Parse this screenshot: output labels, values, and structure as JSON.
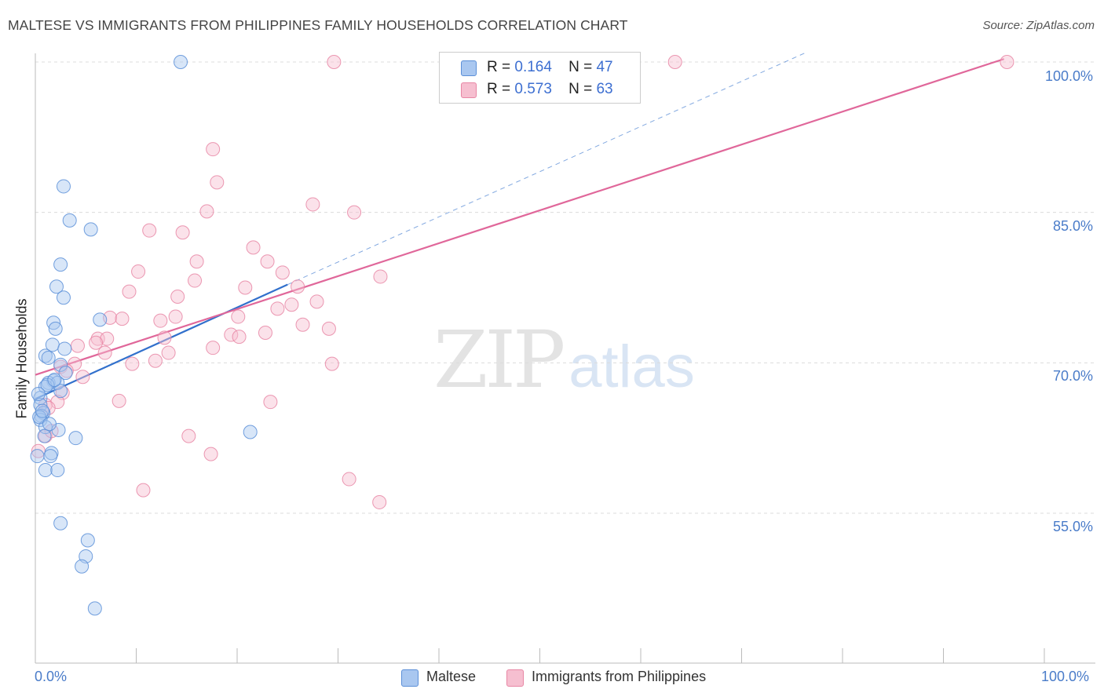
{
  "chart_data": {
    "type": "scatter",
    "title": "MALTESE VS IMMIGRANTS FROM PHILIPPINES FAMILY HOUSEHOLDS CORRELATION CHART",
    "source": "Source: ZipAtlas.com",
    "ylabel": "Family Households",
    "xlabel": "",
    "xlim": [
      0,
      100
    ],
    "ylim": [
      40,
      102.5
    ],
    "y_ticks": [
      {
        "value": 55,
        "label": "55.0%"
      },
      {
        "value": 70,
        "label": "70.0%"
      },
      {
        "value": 85,
        "label": "85.0%"
      },
      {
        "value": 100,
        "label": "100.0%"
      }
    ],
    "x_tick_labels": {
      "min": "0.0%",
      "max": "100.0%"
    },
    "grid": true,
    "legend": {
      "position": "top-center",
      "rows": [
        {
          "r_label": "R =",
          "r_value": "0.164",
          "n_label": "N =",
          "n_value": "47"
        },
        {
          "r_label": "R =",
          "r_value": "0.573",
          "n_label": "N =",
          "n_value": "63"
        }
      ]
    },
    "series": [
      {
        "name": "Maltese",
        "color": "#a9c7f0",
        "edge_color": "#5b8fd8",
        "line_color": "#3170cc",
        "trend": {
          "x": [
            0,
            25.0
          ],
          "y": [
            66.4,
            77.8
          ]
        },
        "trend_extension": {
          "x": [
            25.0,
            76.5
          ],
          "y": [
            77.8,
            101.0
          ]
        },
        "points": [
          [
            14.4,
            100.0
          ],
          [
            2.8,
            87.6
          ],
          [
            3.4,
            84.2
          ],
          [
            5.5,
            83.3
          ],
          [
            2.5,
            79.8
          ],
          [
            2.1,
            77.6
          ],
          [
            2.8,
            76.5
          ],
          [
            6.4,
            74.3
          ],
          [
            1.8,
            74.0
          ],
          [
            2.0,
            73.4
          ],
          [
            1.7,
            71.8
          ],
          [
            2.9,
            71.4
          ],
          [
            1.0,
            70.7
          ],
          [
            1.3,
            70.5
          ],
          [
            2.5,
            69.8
          ],
          [
            3.0,
            69.0
          ],
          [
            1.8,
            68.2
          ],
          [
            1.3,
            68.0
          ],
          [
            2.2,
            68.0
          ],
          [
            1.0,
            67.6
          ],
          [
            2.5,
            67.2
          ],
          [
            0.5,
            66.5
          ],
          [
            0.5,
            65.8
          ],
          [
            0.8,
            65.0
          ],
          [
            0.6,
            64.7
          ],
          [
            0.5,
            64.3
          ],
          [
            1.0,
            63.6
          ],
          [
            2.3,
            63.3
          ],
          [
            0.9,
            62.7
          ],
          [
            4.0,
            62.5
          ],
          [
            21.3,
            63.1
          ],
          [
            1.6,
            61.0
          ],
          [
            1.5,
            60.7
          ],
          [
            0.2,
            60.7
          ],
          [
            1.0,
            59.3
          ],
          [
            2.2,
            59.3
          ],
          [
            2.5,
            54.0
          ],
          [
            5.2,
            52.3
          ],
          [
            5.0,
            50.7
          ],
          [
            4.6,
            49.7
          ],
          [
            5.9,
            45.5
          ],
          [
            0.4,
            64.6
          ],
          [
            1.2,
            67.8
          ],
          [
            0.7,
            65.2
          ],
          [
            1.9,
            68.3
          ],
          [
            0.3,
            66.9
          ],
          [
            1.4,
            63.9
          ]
        ]
      },
      {
        "name": "Immigrants from Philippines",
        "color": "#f6bfd0",
        "edge_color": "#e886a4",
        "line_color": "#e0679a",
        "trend": {
          "x": [
            0,
            96.0
          ],
          "y": [
            68.8,
            100.3
          ]
        },
        "points": [
          [
            29.6,
            100.0
          ],
          [
            63.4,
            100.0
          ],
          [
            96.3,
            100.0
          ],
          [
            17.6,
            91.3
          ],
          [
            18.0,
            88.0
          ],
          [
            27.5,
            85.8
          ],
          [
            17.0,
            85.1
          ],
          [
            31.6,
            85.0
          ],
          [
            11.3,
            83.2
          ],
          [
            14.6,
            83.0
          ],
          [
            21.6,
            81.5
          ],
          [
            16.0,
            80.1
          ],
          [
            23.0,
            80.1
          ],
          [
            10.2,
            79.1
          ],
          [
            24.5,
            79.0
          ],
          [
            34.2,
            78.6
          ],
          [
            15.8,
            78.2
          ],
          [
            20.8,
            77.5
          ],
          [
            26.0,
            77.6
          ],
          [
            9.3,
            77.1
          ],
          [
            14.1,
            76.6
          ],
          [
            27.9,
            76.1
          ],
          [
            25.4,
            75.8
          ],
          [
            24.0,
            75.4
          ],
          [
            7.4,
            74.5
          ],
          [
            8.6,
            74.4
          ],
          [
            13.9,
            74.6
          ],
          [
            12.4,
            74.2
          ],
          [
            20.1,
            74.6
          ],
          [
            26.5,
            73.8
          ],
          [
            29.1,
            73.4
          ],
          [
            22.8,
            73.0
          ],
          [
            19.4,
            72.8
          ],
          [
            20.2,
            72.6
          ],
          [
            12.8,
            72.5
          ],
          [
            6.2,
            72.4
          ],
          [
            7.1,
            72.4
          ],
          [
            6.0,
            72.0
          ],
          [
            4.2,
            71.7
          ],
          [
            17.6,
            71.5
          ],
          [
            6.9,
            71.0
          ],
          [
            13.2,
            71.0
          ],
          [
            11.9,
            70.2
          ],
          [
            9.6,
            69.9
          ],
          [
            29.4,
            69.9
          ],
          [
            3.9,
            69.9
          ],
          [
            2.5,
            69.6
          ],
          [
            3.1,
            69.2
          ],
          [
            4.7,
            68.6
          ],
          [
            2.7,
            67.0
          ],
          [
            8.3,
            66.2
          ],
          [
            23.3,
            66.1
          ],
          [
            2.2,
            66.1
          ],
          [
            1.0,
            65.8
          ],
          [
            1.3,
            65.5
          ],
          [
            1.0,
            62.7
          ],
          [
            15.2,
            62.7
          ],
          [
            17.4,
            60.9
          ],
          [
            31.1,
            58.4
          ],
          [
            10.7,
            57.3
          ],
          [
            34.1,
            56.1
          ],
          [
            0.3,
            61.2
          ],
          [
            1.6,
            63.2
          ]
        ]
      }
    ]
  }
}
